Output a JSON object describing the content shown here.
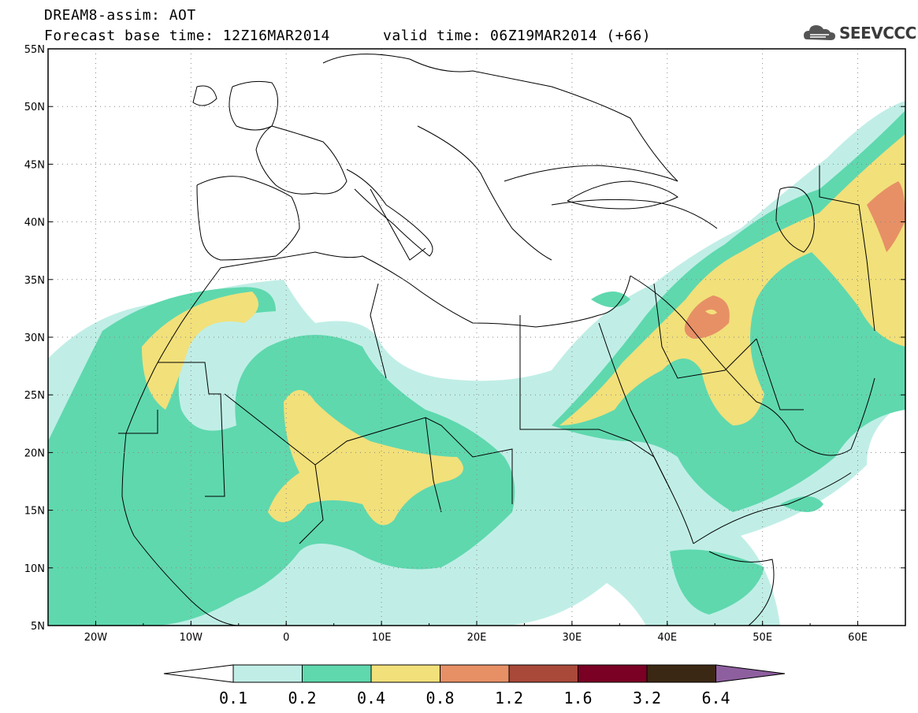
{
  "header": {
    "title": "DREAM8-assim: AOT",
    "base_time": "Forecast base time: 12Z16MAR2014",
    "valid_time": "valid time: 06Z19MAR2014 (+66)",
    "logo_text": "SEEVCCC"
  },
  "axes": {
    "lat_labels": [
      "55N",
      "50N",
      "45N",
      "40N",
      "35N",
      "30N",
      "25N",
      "20N",
      "15N",
      "10N",
      "5N"
    ],
    "lon_labels": [
      "20W",
      "10W",
      "0",
      "10E",
      "20E",
      "30E",
      "40E",
      "50E",
      "60E"
    ],
    "lon_range": [
      -25,
      65
    ],
    "lat_range": [
      5,
      55
    ]
  },
  "colorbar": {
    "labels": [
      "0.1",
      "0.2",
      "0.4",
      "0.8",
      "1.2",
      "1.6",
      "3.2",
      "6.4"
    ],
    "colors": [
      "#ffffff",
      "#c0eee6",
      "#5fd8ae",
      "#f2e07a",
      "#e79066",
      "#a8493a",
      "#7a0024",
      "#3b2814",
      "#8e5f9f"
    ]
  }
}
